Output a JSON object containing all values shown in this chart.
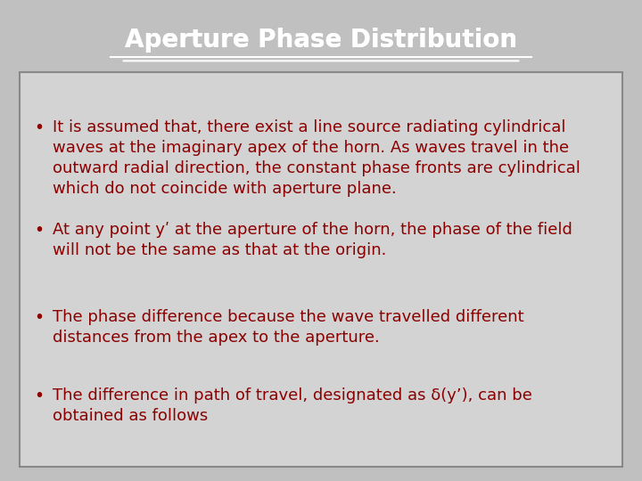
{
  "title": "Aperture Phase Distribution",
  "title_bg_color": "#7B5EA7",
  "title_text_color": "#FFFFFF",
  "title_fontsize": 20,
  "body_bg_color": "#D3D3D3",
  "body_border_color": "#888888",
  "text_color": "#8B0000",
  "bullet_points": [
    "It is assumed that, there exist a line source radiating cylindrical\nwaves at the imaginary apex of the horn. As waves travel in the\noutward radial direction, the constant phase fronts are cylindrical\nwhich do not coincide with aperture plane.",
    "At any point yʹ at the aperture of the horn, the phase of the field\nwill not be the same as that at the origin.",
    "The phase difference because the wave travelled different\ndistances from the apex to the aperture.",
    "The difference in path of travel, designated as δ(y’), can be\nobtained as follows"
  ],
  "fig_bg_color": "#C0C0C0",
  "fontsize": 13.5
}
